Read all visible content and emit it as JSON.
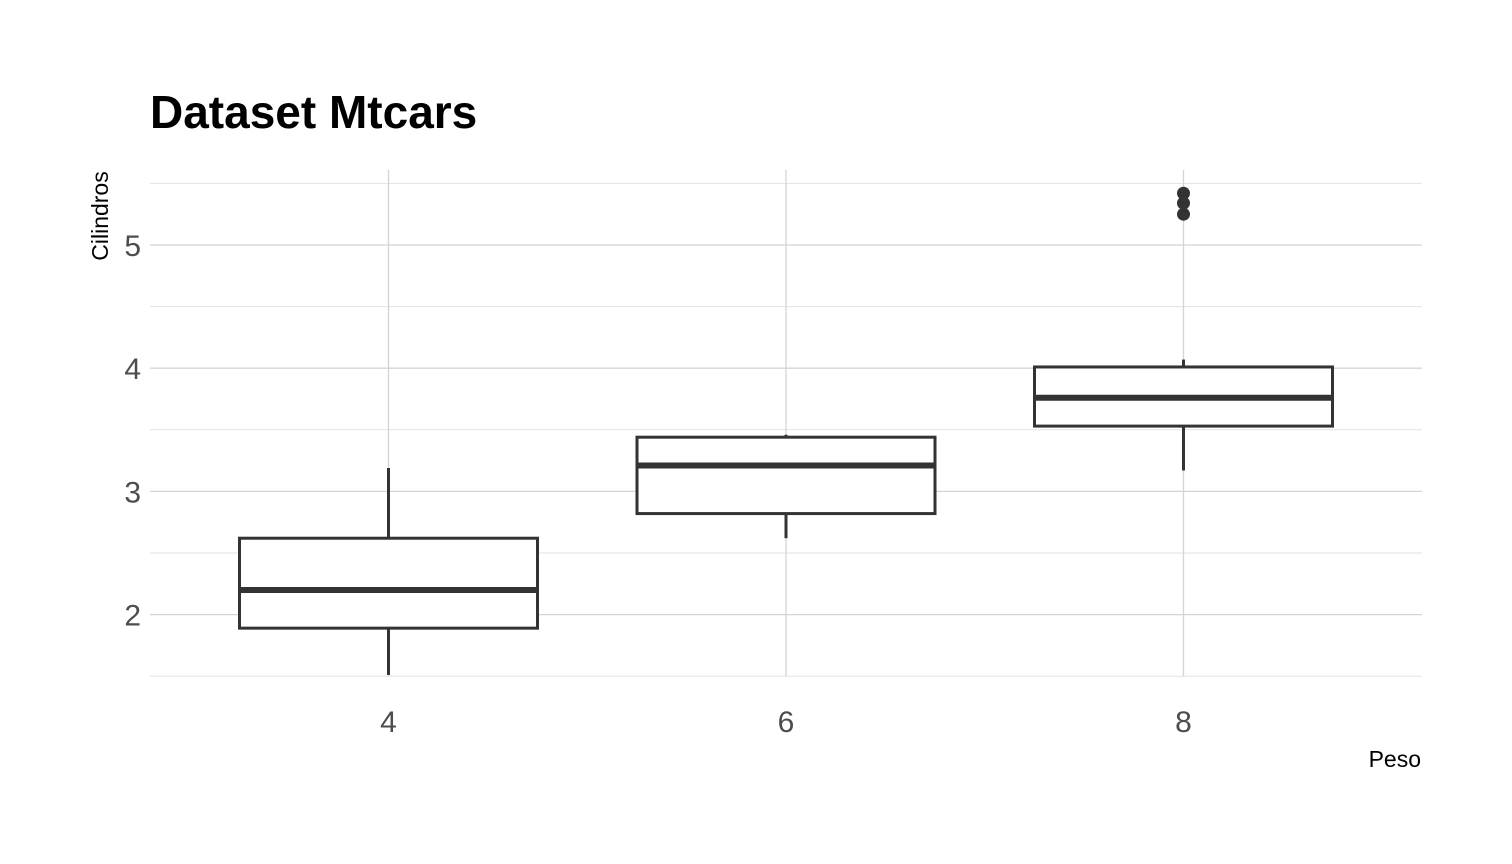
{
  "chart_data": {
    "type": "boxplot",
    "title": "Dataset Mtcars",
    "xlabel": "Peso",
    "ylabel": "Cilindros",
    "categories": [
      "4",
      "6",
      "8"
    ],
    "x_ticks": [
      "4",
      "6",
      "8"
    ],
    "y_ticks": [
      "2",
      "3",
      "4",
      "5"
    ],
    "ylim": [
      1.5,
      5.5
    ],
    "xlim": [
      2.8,
      9.2
    ],
    "grid": true,
    "boxes": [
      {
        "category": "4",
        "x": 4,
        "whisker_low": 1.51,
        "q1": 1.89,
        "median": 2.2,
        "q3": 2.62,
        "whisker_high": 3.19,
        "outliers": []
      },
      {
        "category": "6",
        "x": 6,
        "whisker_low": 2.62,
        "q1": 2.82,
        "median": 3.21,
        "q3": 3.44,
        "whisker_high": 3.46,
        "outliers": []
      },
      {
        "category": "8",
        "x": 8,
        "whisker_low": 3.17,
        "q1": 3.53,
        "median": 3.76,
        "q3": 4.01,
        "whisker_high": 4.07,
        "outliers": [
          5.25,
          5.34,
          5.42
        ]
      }
    ],
    "colors": {
      "box_stroke": "#333333",
      "box_fill": "#ffffff",
      "grid": "#d4d4d4",
      "tick_text": "#4d4d4d"
    }
  }
}
